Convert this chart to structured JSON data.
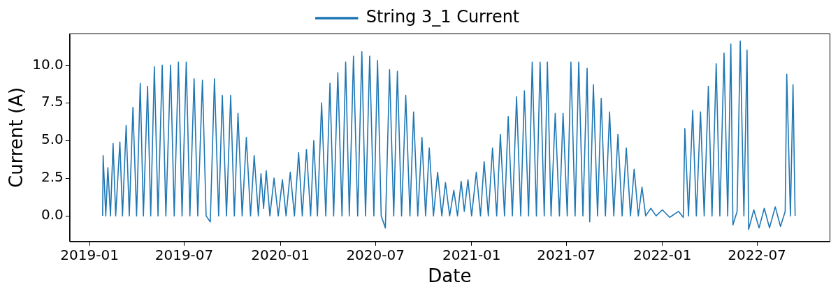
{
  "chart_data": {
    "type": "line",
    "xlabel": "Date",
    "ylabel": "Current (A)",
    "xlim": [
      "2018-11-24",
      "2022-11-17"
    ],
    "xticks": [
      "2019-01",
      "2019-07",
      "2020-01",
      "2020-07",
      "2021-01",
      "2021-07",
      "2022-01",
      "2022-07"
    ],
    "ylim": [
      -1.7,
      12.1
    ],
    "yticks": [
      {
        "value": 0,
        "label": "0.0"
      },
      2.5,
      {
        "value": 5,
        "label": "5.0"
      },
      7.5,
      {
        "value": 10,
        "label": "10.0"
      }
    ],
    "grid": false,
    "legend": "top",
    "marker": "none",
    "line_style": "solid",
    "series": [
      {
        "name": "String 3_1 Current",
        "color": "#1f77b4",
        "x": [
          "2019-01-26",
          "2019-01-27",
          "2019-02-01",
          "2019-02-05",
          "2019-02-10",
          "2019-02-15",
          "2019-02-20",
          "2019-02-28",
          "2019-03-05",
          "2019-03-12",
          "2019-03-18",
          "2019-03-25",
          "2019-04-01",
          "2019-04-08",
          "2019-04-14",
          "2019-04-22",
          "2019-04-28",
          "2019-05-05",
          "2019-05-12",
          "2019-05-20",
          "2019-05-27",
          "2019-06-05",
          "2019-06-12",
          "2019-06-20",
          "2019-06-27",
          "2019-07-05",
          "2019-07-12",
          "2019-07-20",
          "2019-07-27",
          "2019-08-05",
          "2019-08-12",
          "2019-08-20",
          "2019-08-28",
          "2019-09-05",
          "2019-09-12",
          "2019-09-20",
          "2019-09-28",
          "2019-10-05",
          "2019-10-12",
          "2019-10-20",
          "2019-10-28",
          "2019-11-05",
          "2019-11-12",
          "2019-11-20",
          "2019-11-25",
          "2019-11-30",
          "2019-12-05",
          "2019-12-12",
          "2019-12-20",
          "2019-12-28",
          "2020-01-05",
          "2020-01-12",
          "2020-01-20",
          "2020-01-28",
          "2020-02-05",
          "2020-02-12",
          "2020-02-20",
          "2020-02-28",
          "2020-03-05",
          "2020-03-12",
          "2020-03-20",
          "2020-03-28",
          "2020-04-05",
          "2020-04-12",
          "2020-04-20",
          "2020-04-28",
          "2020-05-05",
          "2020-05-12",
          "2020-05-20",
          "2020-05-28",
          "2020-06-05",
          "2020-06-12",
          "2020-06-20",
          "2020-06-28",
          "2020-07-05",
          "2020-07-12",
          "2020-07-20",
          "2020-07-28",
          "2020-08-05",
          "2020-08-12",
          "2020-08-20",
          "2020-08-28",
          "2020-09-05",
          "2020-09-12",
          "2020-09-20",
          "2020-09-28",
          "2020-10-05",
          "2020-10-12",
          "2020-10-20",
          "2020-10-28",
          "2020-11-05",
          "2020-11-12",
          "2020-11-20",
          "2020-11-28",
          "2020-12-05",
          "2020-12-12",
          "2020-12-18",
          "2020-12-25",
          "2021-01-01",
          "2021-01-10",
          "2021-01-18",
          "2021-01-25",
          "2021-02-02",
          "2021-02-10",
          "2021-02-18",
          "2021-02-25",
          "2021-03-05",
          "2021-03-12",
          "2021-03-20",
          "2021-03-28",
          "2021-04-05",
          "2021-04-12",
          "2021-04-20",
          "2021-04-27",
          "2021-05-05",
          "2021-05-12",
          "2021-05-20",
          "2021-05-26",
          "2021-06-02",
          "2021-06-10",
          "2021-06-18",
          "2021-06-25",
          "2021-07-03",
          "2021-07-10",
          "2021-07-18",
          "2021-07-25",
          "2021-08-02",
          "2021-08-10",
          "2021-08-15",
          "2021-08-22",
          "2021-08-30",
          "2021-09-06",
          "2021-09-14",
          "2021-09-22",
          "2021-09-30",
          "2021-10-08",
          "2021-10-16",
          "2021-10-24",
          "2021-11-01",
          "2021-11-08",
          "2021-11-16",
          "2021-11-23",
          "2021-11-30",
          "2021-12-10",
          "2021-12-20",
          "2022-01-01",
          "2022-01-15",
          "2022-02-01",
          "2022-02-10",
          "2022-02-13",
          "2022-02-20",
          "2022-02-28",
          "2022-03-07",
          "2022-03-15",
          "2022-03-22",
          "2022-03-30",
          "2022-04-06",
          "2022-04-14",
          "2022-04-21",
          "2022-04-29",
          "2022-05-06",
          "2022-05-12",
          "2022-05-16",
          "2022-05-24",
          "2022-05-30",
          "2022-06-06",
          "2022-06-12",
          "2022-06-15",
          "2022-06-25",
          "2022-07-05",
          "2022-07-15",
          "2022-07-25",
          "2022-08-05",
          "2022-08-15",
          "2022-08-24",
          "2022-08-27",
          "2022-09-03",
          "2022-09-08",
          "2022-09-12"
        ],
        "values": [
          0,
          4.0,
          0,
          3.2,
          0,
          4.8,
          0,
          4.9,
          0,
          6.0,
          0,
          7.2,
          0,
          8.8,
          0,
          8.6,
          0,
          9.9,
          0,
          10.0,
          0,
          10.0,
          0,
          10.2,
          0,
          10.2,
          0,
          9.1,
          0,
          9.0,
          0,
          -0.4,
          9.1,
          0,
          8.0,
          0,
          8.0,
          0,
          6.8,
          0,
          5.2,
          0,
          4.0,
          0,
          2.8,
          0.5,
          3.0,
          0,
          2.5,
          0,
          2.4,
          0,
          2.9,
          0,
          4.2,
          0,
          4.4,
          0,
          5.0,
          0,
          7.5,
          0,
          8.8,
          0,
          9.5,
          0,
          10.2,
          0,
          10.6,
          0,
          10.9,
          0,
          10.6,
          0,
          10.3,
          0,
          -0.8,
          9.7,
          0,
          9.6,
          0,
          8.0,
          0,
          6.9,
          0,
          5.2,
          0,
          4.5,
          0,
          2.9,
          0,
          2.2,
          0,
          1.7,
          0,
          2.3,
          0.3,
          2.4,
          0,
          2.9,
          0,
          3.6,
          0,
          4.5,
          0,
          5.4,
          0,
          6.6,
          0,
          7.9,
          0,
          8.3,
          0,
          10.2,
          0,
          10.2,
          0,
          10.2,
          0,
          6.8,
          0,
          6.8,
          0,
          10.2,
          0,
          10.2,
          0,
          9.8,
          -0.4,
          8.7,
          0,
          7.8,
          0,
          6.9,
          0,
          5.4,
          0,
          4.5,
          0,
          3.1,
          0,
          1.9,
          0,
          0.5,
          0,
          0.4,
          -0.1,
          0.3,
          -0.1,
          5.8,
          0,
          7.0,
          0,
          6.9,
          0,
          8.6,
          0,
          10.1,
          0,
          10.8,
          0,
          11.4,
          -0.6,
          0.3,
          11.6,
          0,
          11.0,
          -0.9,
          0.4,
          -0.8,
          0.5,
          -0.8,
          0.6,
          -0.7,
          0.3,
          9.4,
          0,
          8.7,
          0
        ]
      }
    ]
  }
}
